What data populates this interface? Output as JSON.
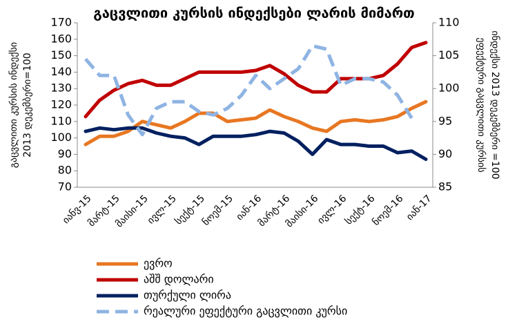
{
  "chart_data": {
    "type": "line",
    "title": "გაცვლითი კურსის ინდექსები ლარის მიმართ",
    "ylabel": [
      "გაცვლითი კურსის ინდექსი",
      "2013 დეკემბერი=100"
    ],
    "y2label": [
      "ეფექტური გაცვლითი კურსის",
      "ინდექსი 2013 დეკემბერი =100"
    ],
    "categories": [
      "იანვ-15",
      null,
      "მარტ-15",
      null,
      "მაისი-15",
      null,
      "ივლ-15",
      null,
      "სექტ-15",
      null,
      "ნოემ-15",
      null,
      "იან-16",
      null,
      "მარტ-16",
      null,
      "მაისი-16",
      null,
      "ივლ-16",
      null,
      "სექტ-16",
      null,
      "ნოემ-16",
      null,
      "იან-17"
    ],
    "ylim": [
      70,
      170
    ],
    "yticks": [
      70,
      80,
      90,
      100,
      110,
      120,
      130,
      140,
      150,
      160,
      170
    ],
    "y2lim": [
      85,
      110
    ],
    "y2ticks": [
      85,
      90,
      95,
      100,
      105,
      110
    ],
    "series": [
      {
        "name": "ევრო",
        "color": "#e87722",
        "values": [
          96,
          101,
          101,
          104,
          110,
          108,
          106,
          110,
          115,
          115,
          110,
          111,
          112,
          117,
          113,
          110,
          106,
          104,
          110,
          111,
          110,
          111,
          113,
          118,
          122
        ]
      },
      {
        "name": "აშშ დოლარი",
        "color": "#c00000",
        "values": [
          113,
          123,
          129,
          133,
          135,
          132,
          132,
          136,
          140,
          140,
          140,
          140,
          141,
          144,
          139,
          132,
          128,
          128,
          136,
          136,
          136,
          138,
          145,
          155,
          158
        ]
      },
      {
        "name": "თურქული ლირა",
        "color": "#002060",
        "values": [
          104,
          106,
          105,
          106,
          106,
          103,
          101,
          100,
          96,
          101,
          101,
          101,
          102,
          104,
          103,
          98,
          90,
          99,
          96,
          96,
          95,
          95,
          91,
          92,
          87
        ]
      },
      {
        "name": "რეალური ეფექტური გაცვლითი კურსი",
        "color": "#8eb4e3",
        "dashed": true,
        "axis": "y2",
        "values": [
          104.5,
          102,
          102,
          96,
          93,
          97,
          98,
          98,
          96.5,
          96,
          97,
          99,
          102,
          100,
          101.5,
          103,
          106.5,
          106,
          100.5,
          101.5,
          101.5,
          101,
          99,
          95.5,
          null
        ]
      }
    ]
  }
}
